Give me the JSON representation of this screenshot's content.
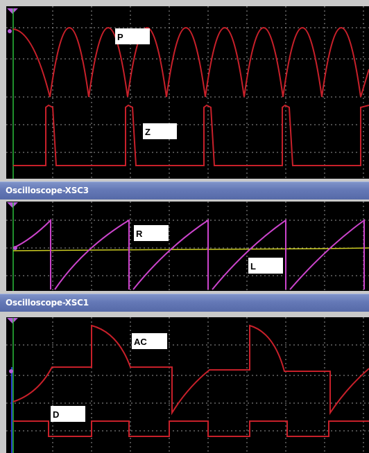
{
  "colors": {
    "screen_bg": "#000000",
    "grid": "#9a9a9a",
    "channel_a": "#c8202a",
    "channel_b_magenta": "#cc44cc",
    "channel_b_yellow": "#cccc22",
    "trigger_marker": "#b45ad6",
    "cursor_line": "#2bbf3a",
    "titlebar": "#6478b6"
  },
  "scope_top": {
    "labels": [
      "P",
      "Z"
    ]
  },
  "scope_xsc3": {
    "title": "Oscilloscope-XSC3",
    "labels": [
      "R",
      "L"
    ]
  },
  "scope_xsc1": {
    "title": "Oscilloscope-XSC1",
    "labels": [
      "AC",
      "D"
    ]
  }
}
